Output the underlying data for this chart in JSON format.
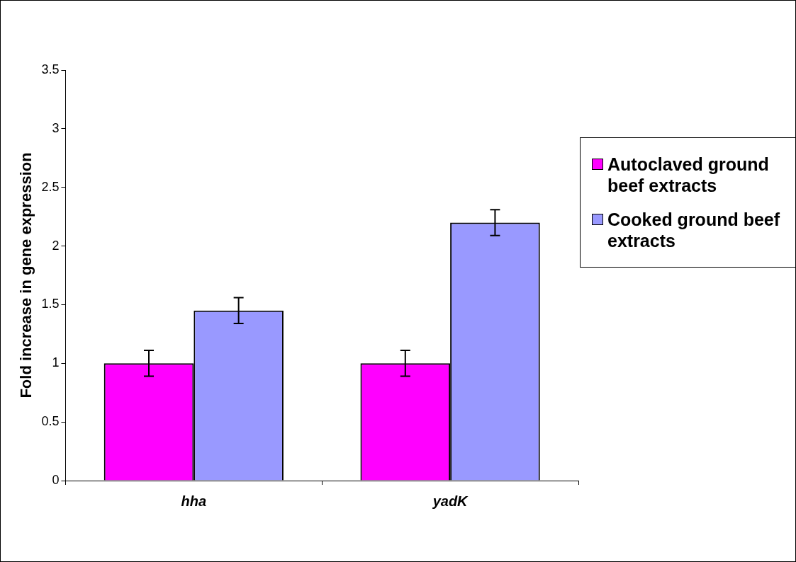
{
  "chart_data": {
    "type": "bar",
    "ylabel": "Fold increase in gene expression",
    "categories": [
      "hha",
      "yadK"
    ],
    "series": [
      {
        "name": "Autoclaved ground beef extracts",
        "color": "#ff00ff",
        "values": [
          1,
          1
        ],
        "errors": [
          0.11,
          0.11
        ]
      },
      {
        "name": "Cooked ground beef extracts",
        "color": "#9999ff",
        "values": [
          1.45,
          2.2
        ],
        "errors": [
          0.11,
          0.11
        ]
      }
    ],
    "ylim": [
      0,
      3.5
    ],
    "yticks": [
      0,
      0.5,
      1,
      1.5,
      2,
      2.5,
      3,
      3.5
    ],
    "legend": "right"
  }
}
